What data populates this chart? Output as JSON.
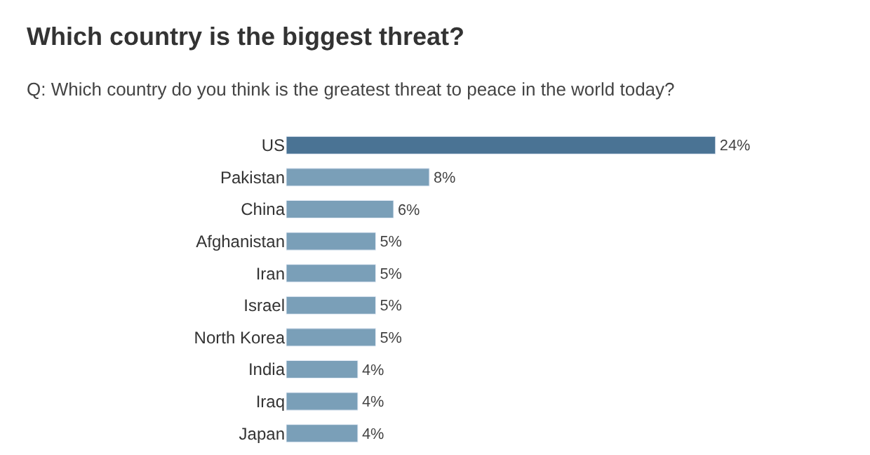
{
  "chart_data": {
    "type": "bar",
    "orientation": "horizontal",
    "title": "Which country is the biggest threat?",
    "subtitle": "Q: Which country do you think is the greatest threat to peace in the world today?",
    "categories": [
      "US",
      "Pakistan",
      "China",
      "Afghanistan",
      "Iran",
      "Israel",
      "North Korea",
      "India",
      "Iraq",
      "Japan"
    ],
    "values": [
      24,
      8,
      6,
      5,
      5,
      5,
      5,
      4,
      4,
      4
    ],
    "value_labels": [
      "24%",
      "8%",
      "6%",
      "5%",
      "5%",
      "5%",
      "5%",
      "4%",
      "4%",
      "4%"
    ],
    "colors": [
      "#4a7394",
      "#7a9fb8",
      "#7a9fb8",
      "#7a9fb8",
      "#7a9fb8",
      "#7a9fb8",
      "#7a9fb8",
      "#7a9fb8",
      "#7a9fb8",
      "#7a9fb8"
    ]
  }
}
